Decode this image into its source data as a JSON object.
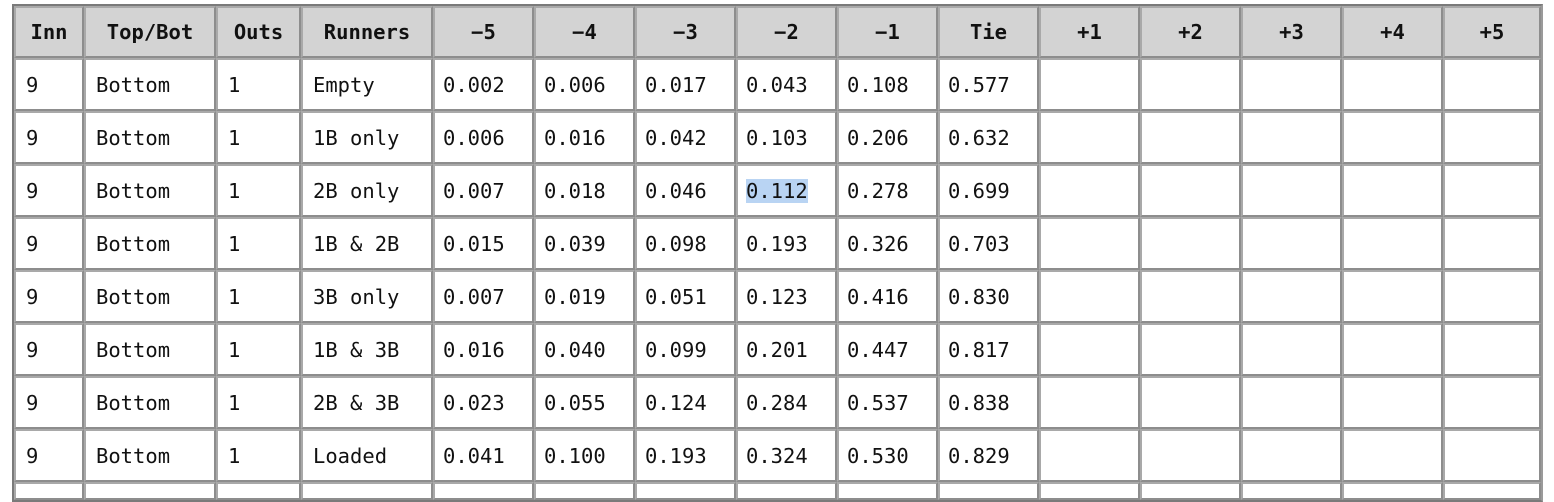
{
  "table": {
    "headers": [
      "Inn",
      "Top/Bot",
      "Outs",
      "Runners",
      "−5",
      "−4",
      "−3",
      "−2",
      "−1",
      "Tie",
      "+1",
      "+2",
      "+3",
      "+4",
      "+5"
    ],
    "rows": [
      [
        "9",
        "Bottom",
        "1",
        "Empty",
        "0.002",
        "0.006",
        "0.017",
        "0.043",
        "0.108",
        "0.577",
        "",
        "",
        "",
        "",
        ""
      ],
      [
        "9",
        "Bottom",
        "1",
        "1B only",
        "0.006",
        "0.016",
        "0.042",
        "0.103",
        "0.206",
        "0.632",
        "",
        "",
        "",
        "",
        ""
      ],
      [
        "9",
        "Bottom",
        "1",
        "2B only",
        "0.007",
        "0.018",
        "0.046",
        "0.112",
        "0.278",
        "0.699",
        "",
        "",
        "",
        "",
        ""
      ],
      [
        "9",
        "Bottom",
        "1",
        "1B & 2B",
        "0.015",
        "0.039",
        "0.098",
        "0.193",
        "0.326",
        "0.703",
        "",
        "",
        "",
        "",
        ""
      ],
      [
        "9",
        "Bottom",
        "1",
        "3B only",
        "0.007",
        "0.019",
        "0.051",
        "0.123",
        "0.416",
        "0.830",
        "",
        "",
        "",
        "",
        ""
      ],
      [
        "9",
        "Bottom",
        "1",
        "1B & 3B",
        "0.016",
        "0.040",
        "0.099",
        "0.201",
        "0.447",
        "0.817",
        "",
        "",
        "",
        "",
        ""
      ],
      [
        "9",
        "Bottom",
        "1",
        "2B & 3B",
        "0.023",
        "0.055",
        "0.124",
        "0.284",
        "0.537",
        "0.838",
        "",
        "",
        "",
        "",
        ""
      ],
      [
        "9",
        "Bottom",
        "1",
        "Loaded",
        "0.041",
        "0.100",
        "0.193",
        "0.324",
        "0.530",
        "0.829",
        "",
        "",
        "",
        "",
        ""
      ]
    ],
    "selected_text_cell": {
      "row": 2,
      "col": 7
    },
    "colors": {
      "header_bg": "#d3d3d3",
      "border": "#8d8d8d",
      "selection": "#b9d4f3"
    }
  }
}
